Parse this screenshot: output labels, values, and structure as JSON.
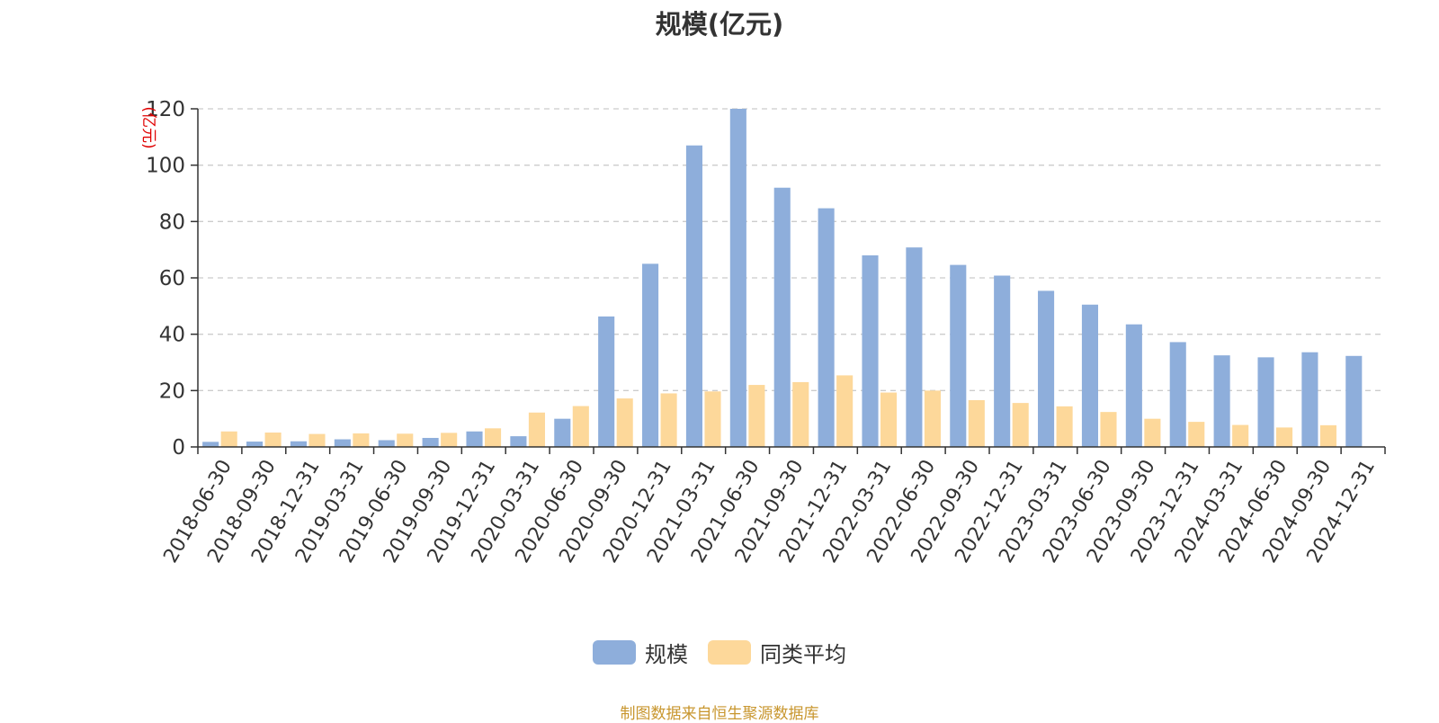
{
  "chart_data": {
    "type": "bar",
    "title": "规模(亿元)",
    "ylabel": "(亿元)",
    "ylim": [
      0,
      120
    ],
    "yticks": [
      0,
      20,
      40,
      60,
      80,
      100,
      120
    ],
    "grid": true,
    "legend_position": "bottom-center",
    "categories": [
      "2018-06-30",
      "2018-09-30",
      "2018-12-31",
      "2019-03-31",
      "2019-06-30",
      "2019-09-30",
      "2019-12-31",
      "2020-03-31",
      "2020-06-30",
      "2020-09-30",
      "2020-12-31",
      "2021-03-31",
      "2021-06-30",
      "2021-09-30",
      "2021-12-31",
      "2022-03-31",
      "2022-06-30",
      "2022-09-30",
      "2022-12-31",
      "2023-03-31",
      "2023-06-30",
      "2023-09-30",
      "2023-12-31",
      "2024-03-31",
      "2024-06-30",
      "2024-09-30",
      "2024-12-31"
    ],
    "series": [
      {
        "name": "规模",
        "color": "#8eaedb",
        "values": [
          1.8,
          1.9,
          2.0,
          2.7,
          2.4,
          3.2,
          5.5,
          3.8,
          10.0,
          46.3,
          65.0,
          107.0,
          120.0,
          92.0,
          84.7,
          68.0,
          70.8,
          64.6,
          60.8,
          55.4,
          50.5,
          43.5,
          37.2,
          32.5,
          31.8,
          33.6,
          32.3
        ]
      },
      {
        "name": "同类平均",
        "color": "#fdd89a",
        "values": [
          5.5,
          5.1,
          4.6,
          4.8,
          4.7,
          5.0,
          6.6,
          12.2,
          14.5,
          17.2,
          19.0,
          19.7,
          22.0,
          23.0,
          25.4,
          19.3,
          20.0,
          16.6,
          15.6,
          14.4,
          12.4,
          10.0,
          8.9,
          7.8,
          6.9,
          7.7,
          null
        ]
      }
    ]
  },
  "footer": {
    "source": "制图数据来自恒生聚源数据库"
  }
}
